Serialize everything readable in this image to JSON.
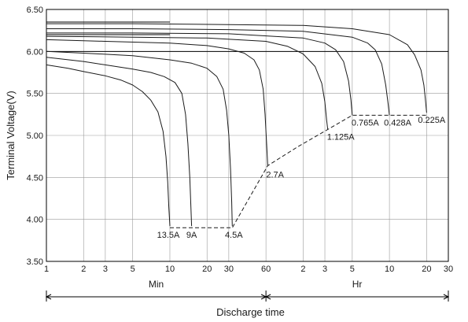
{
  "chart_data": {
    "type": "line",
    "xlabel": "Discharge time",
    "ylabel": "Terminal Voltage(V)",
    "ylim": [
      3.5,
      6.5
    ],
    "x_scale": "log",
    "y_ticks": [
      "3.50",
      "4.00",
      "4.50",
      "5.00",
      "5.50",
      "6.00",
      "6.50"
    ],
    "x_ticks_min": [
      "1",
      "2",
      "3",
      "5",
      "10",
      "20",
      "30",
      "60"
    ],
    "x_ticks_hr": [
      "2",
      "3",
      "5",
      "10",
      "20",
      "30"
    ],
    "x_units": [
      "Min",
      "Hr"
    ],
    "grid": true,
    "series": [
      {
        "name": "13.5A",
        "x_min": [
          1,
          1.5,
          2,
          3,
          4,
          5,
          6,
          7,
          8,
          8.8,
          9.3,
          9.6,
          9.8,
          10
        ],
        "y": [
          5.84,
          5.8,
          5.76,
          5.71,
          5.66,
          5.6,
          5.52,
          5.42,
          5.28,
          5.05,
          4.75,
          4.45,
          4.15,
          3.92
        ]
      },
      {
        "name": "9A",
        "x_min": [
          1,
          2,
          3,
          5,
          7,
          9,
          11,
          12.5,
          13.4,
          14,
          14.5,
          14.8,
          15
        ],
        "y": [
          5.93,
          5.88,
          5.84,
          5.79,
          5.75,
          5.7,
          5.63,
          5.5,
          5.25,
          4.9,
          4.5,
          4.15,
          3.92
        ]
      },
      {
        "name": "4.5A",
        "x_min": [
          1,
          2,
          5,
          10,
          15,
          20,
          24,
          27,
          28.8,
          30,
          31,
          31.7,
          32
        ],
        "y": [
          6.0,
          5.98,
          5.95,
          5.9,
          5.86,
          5.8,
          5.7,
          5.55,
          5.3,
          5.0,
          4.6,
          4.2,
          3.92
        ]
      },
      {
        "name": "2.7A",
        "x_min": [
          1,
          3,
          10,
          20,
          30,
          40,
          48,
          53,
          57,
          59,
          60.5,
          61.5,
          62
        ],
        "y": [
          6.14,
          6.12,
          6.1,
          6.07,
          6.03,
          5.98,
          5.9,
          5.78,
          5.55,
          5.25,
          4.95,
          4.75,
          4.64
        ]
      },
      {
        "name": "1.125A",
        "x_min": [
          1,
          5,
          20,
          60,
          90,
          120,
          150,
          170,
          180,
          186,
          190
        ],
        "y": [
          6.18,
          6.17,
          6.16,
          6.12,
          6.06,
          5.97,
          5.82,
          5.62,
          5.4,
          5.18,
          5.07
        ]
      },
      {
        "name": "0.765A",
        "x_min": [
          1,
          5,
          30,
          120,
          180,
          220,
          255,
          280,
          293,
          300
        ],
        "y": [
          6.22,
          6.22,
          6.21,
          6.16,
          6.1,
          6.02,
          5.88,
          5.65,
          5.42,
          5.24
        ]
      },
      {
        "name": "0.428A",
        "x_min": [
          1,
          5,
          30,
          120,
          300,
          400,
          460,
          520,
          560,
          585,
          600
        ],
        "y": [
          6.27,
          6.27,
          6.26,
          6.24,
          6.17,
          6.1,
          6.02,
          5.85,
          5.6,
          5.38,
          5.24
        ]
      },
      {
        "name": "0.225A",
        "x_min": [
          1,
          5,
          30,
          120,
          300,
          600,
          840,
          960,
          1080,
          1140,
          1170,
          1200
        ],
        "y": [
          6.33,
          6.33,
          6.32,
          6.31,
          6.27,
          6.2,
          6.08,
          5.96,
          5.78,
          5.6,
          5.45,
          5.27
        ]
      }
    ],
    "end_voltage_line": {
      "x_min": [
        10,
        32,
        62,
        110,
        190,
        300,
        600,
        1200
      ],
      "y": [
        3.9,
        3.9,
        4.64,
        4.87,
        5.07,
        5.24,
        5.24,
        5.24
      ]
    },
    "reference_lines": [
      {
        "x_min": [
          1,
          10
        ],
        "y": 6.35
      },
      {
        "x_min": [
          1,
          10
        ],
        "y": 6.2
      },
      {
        "x_min": [
          1,
          1800
        ],
        "y": 6.0
      }
    ]
  }
}
